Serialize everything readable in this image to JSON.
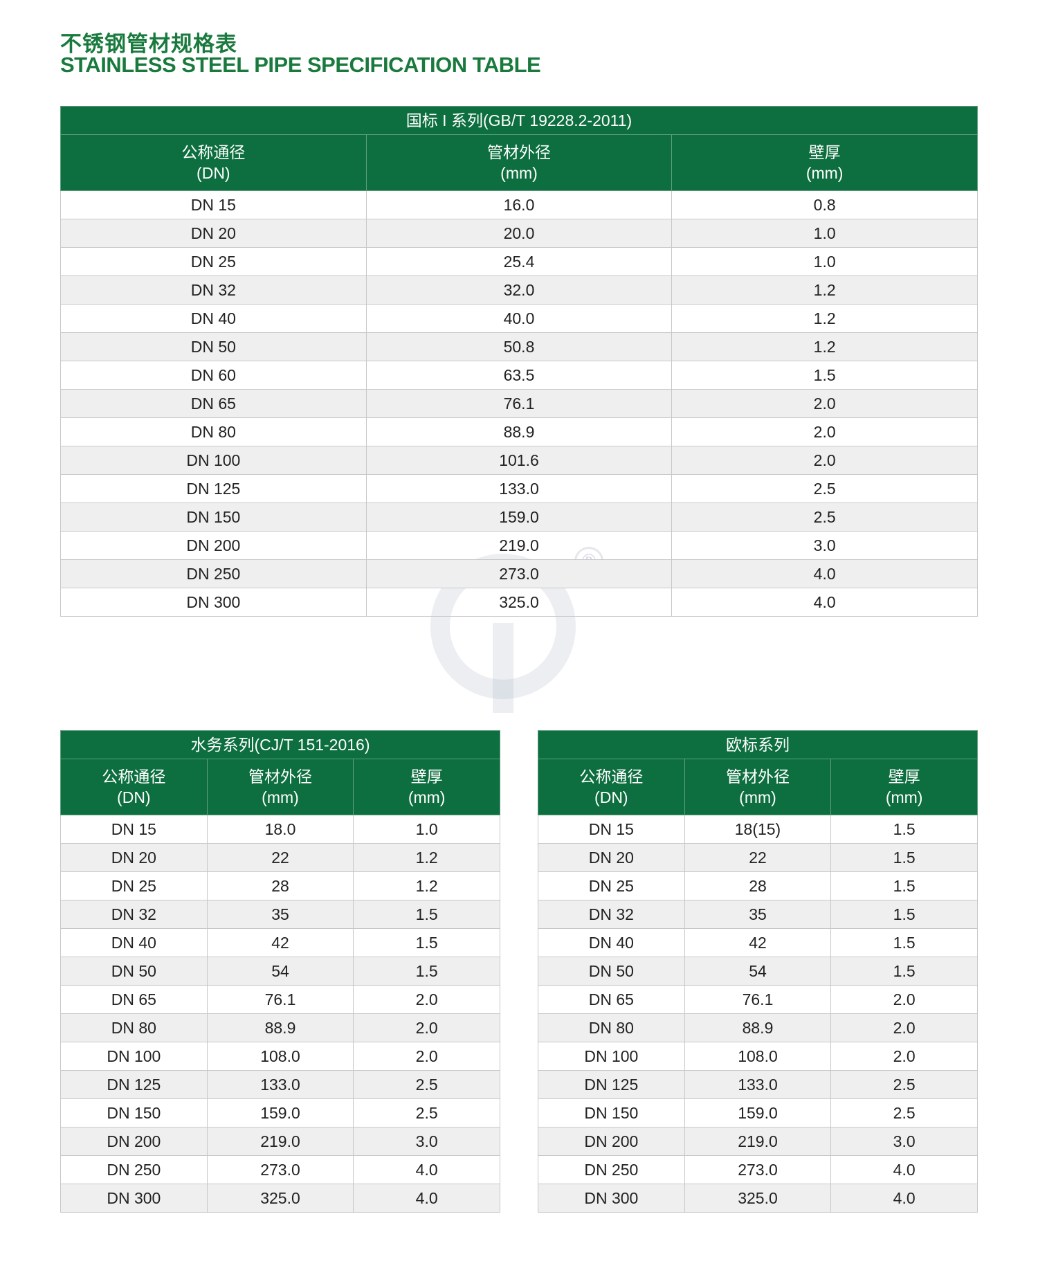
{
  "title_cn": "不锈钢管材规格表",
  "title_en": "STAINLESS STEEL PIPE SPECIFICATION TABLE",
  "watermark": {
    "registered_mark": "®"
  },
  "colors": {
    "header_green": "#0d6e3f",
    "title_green": "#1a7a3e",
    "stripe": "#efefef"
  },
  "headers": [
    {
      "cn": "公称通径",
      "unit": "(DN)"
    },
    {
      "cn": "管材外径",
      "unit": "(mm)"
    },
    {
      "cn": "壁厚",
      "unit": "(mm)"
    }
  ],
  "tables": [
    {
      "caption": "国标 I 系列(GB/T 19228.2-2011)",
      "rows": [
        [
          "DN 15",
          "16.0",
          "0.8"
        ],
        [
          "DN 20",
          "20.0",
          "1.0"
        ],
        [
          "DN 25",
          "25.4",
          "1.0"
        ],
        [
          "DN 32",
          "32.0",
          "1.2"
        ],
        [
          "DN 40",
          "40.0",
          "1.2"
        ],
        [
          "DN 50",
          "50.8",
          "1.2"
        ],
        [
          "DN 60",
          "63.5",
          "1.5"
        ],
        [
          "DN 65",
          "76.1",
          "2.0"
        ],
        [
          "DN 80",
          "88.9",
          "2.0"
        ],
        [
          "DN 100",
          "101.6",
          "2.0"
        ],
        [
          "DN 125",
          "133.0",
          "2.5"
        ],
        [
          "DN 150",
          "159.0",
          "2.5"
        ],
        [
          "DN 200",
          "219.0",
          "3.0"
        ],
        [
          "DN 250",
          "273.0",
          "4.0"
        ],
        [
          "DN 300",
          "325.0",
          "4.0"
        ]
      ]
    },
    {
      "caption": "水务系列(CJ/T 151-2016)",
      "rows": [
        [
          "DN 15",
          "18.0",
          "1.0"
        ],
        [
          "DN 20",
          "22",
          "1.2"
        ],
        [
          "DN 25",
          "28",
          "1.2"
        ],
        [
          "DN 32",
          "35",
          "1.5"
        ],
        [
          "DN 40",
          "42",
          "1.5"
        ],
        [
          "DN 50",
          "54",
          "1.5"
        ],
        [
          "DN 65",
          "76.1",
          "2.0"
        ],
        [
          "DN 80",
          "88.9",
          "2.0"
        ],
        [
          "DN 100",
          "108.0",
          "2.0"
        ],
        [
          "DN 125",
          "133.0",
          "2.5"
        ],
        [
          "DN 150",
          "159.0",
          "2.5"
        ],
        [
          "DN 200",
          "219.0",
          "3.0"
        ],
        [
          "DN 250",
          "273.0",
          "4.0"
        ],
        [
          "DN 300",
          "325.0",
          "4.0"
        ]
      ]
    },
    {
      "caption": "欧标系列",
      "rows": [
        [
          "DN 15",
          "18(15)",
          "1.5"
        ],
        [
          "DN 20",
          "22",
          "1.5"
        ],
        [
          "DN 25",
          "28",
          "1.5"
        ],
        [
          "DN 32",
          "35",
          "1.5"
        ],
        [
          "DN 40",
          "42",
          "1.5"
        ],
        [
          "DN 50",
          "54",
          "1.5"
        ],
        [
          "DN 65",
          "76.1",
          "2.0"
        ],
        [
          "DN 80",
          "88.9",
          "2.0"
        ],
        [
          "DN 100",
          "108.0",
          "2.0"
        ],
        [
          "DN 125",
          "133.0",
          "2.5"
        ],
        [
          "DN 150",
          "159.0",
          "2.5"
        ],
        [
          "DN 200",
          "219.0",
          "3.0"
        ],
        [
          "DN 250",
          "273.0",
          "4.0"
        ],
        [
          "DN 300",
          "325.0",
          "4.0"
        ]
      ]
    }
  ]
}
